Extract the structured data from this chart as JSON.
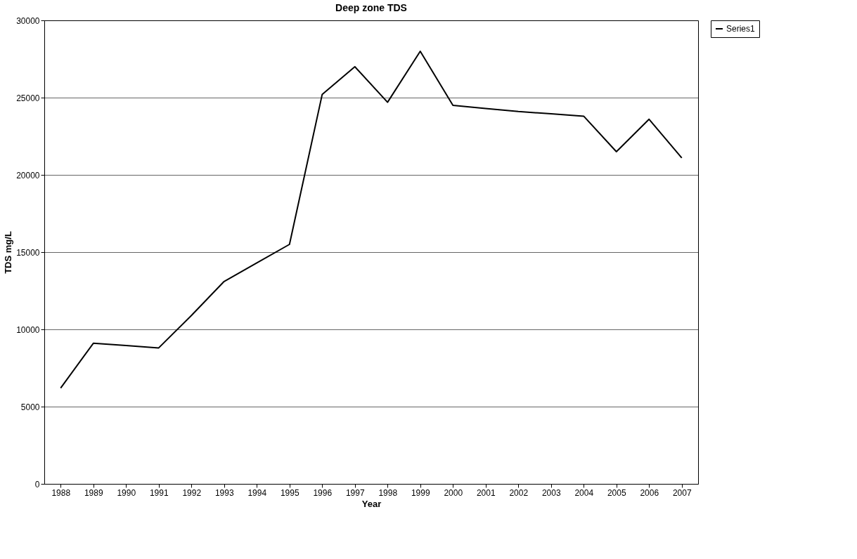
{
  "chart_data": {
    "type": "line",
    "title": "Deep zone TDS",
    "xlabel": "Year",
    "ylabel": "TDS mg/L",
    "categories": [
      "1988",
      "1989",
      "1990",
      "1991",
      "1992",
      "1993",
      "1994",
      "1995",
      "1996",
      "1997",
      "1998",
      "1999",
      "2000",
      "2001",
      "2002",
      "2003",
      "2004",
      "2005",
      "2006",
      "2007"
    ],
    "series": [
      {
        "name": "Series1",
        "color": "#000000",
        "values": [
          6200,
          9100,
          8950,
          8800,
          10900,
          13100,
          14300,
          15500,
          25200,
          27000,
          24700,
          28000,
          24500,
          24300,
          24100,
          23950,
          23800,
          21500,
          23600,
          21100
        ]
      }
    ],
    "ylim": [
      0,
      30000
    ],
    "yticks": [
      0,
      5000,
      10000,
      15000,
      20000,
      25000,
      30000
    ],
    "grid": "y",
    "legend": "right",
    "marker": "none",
    "line_style": "solid"
  }
}
